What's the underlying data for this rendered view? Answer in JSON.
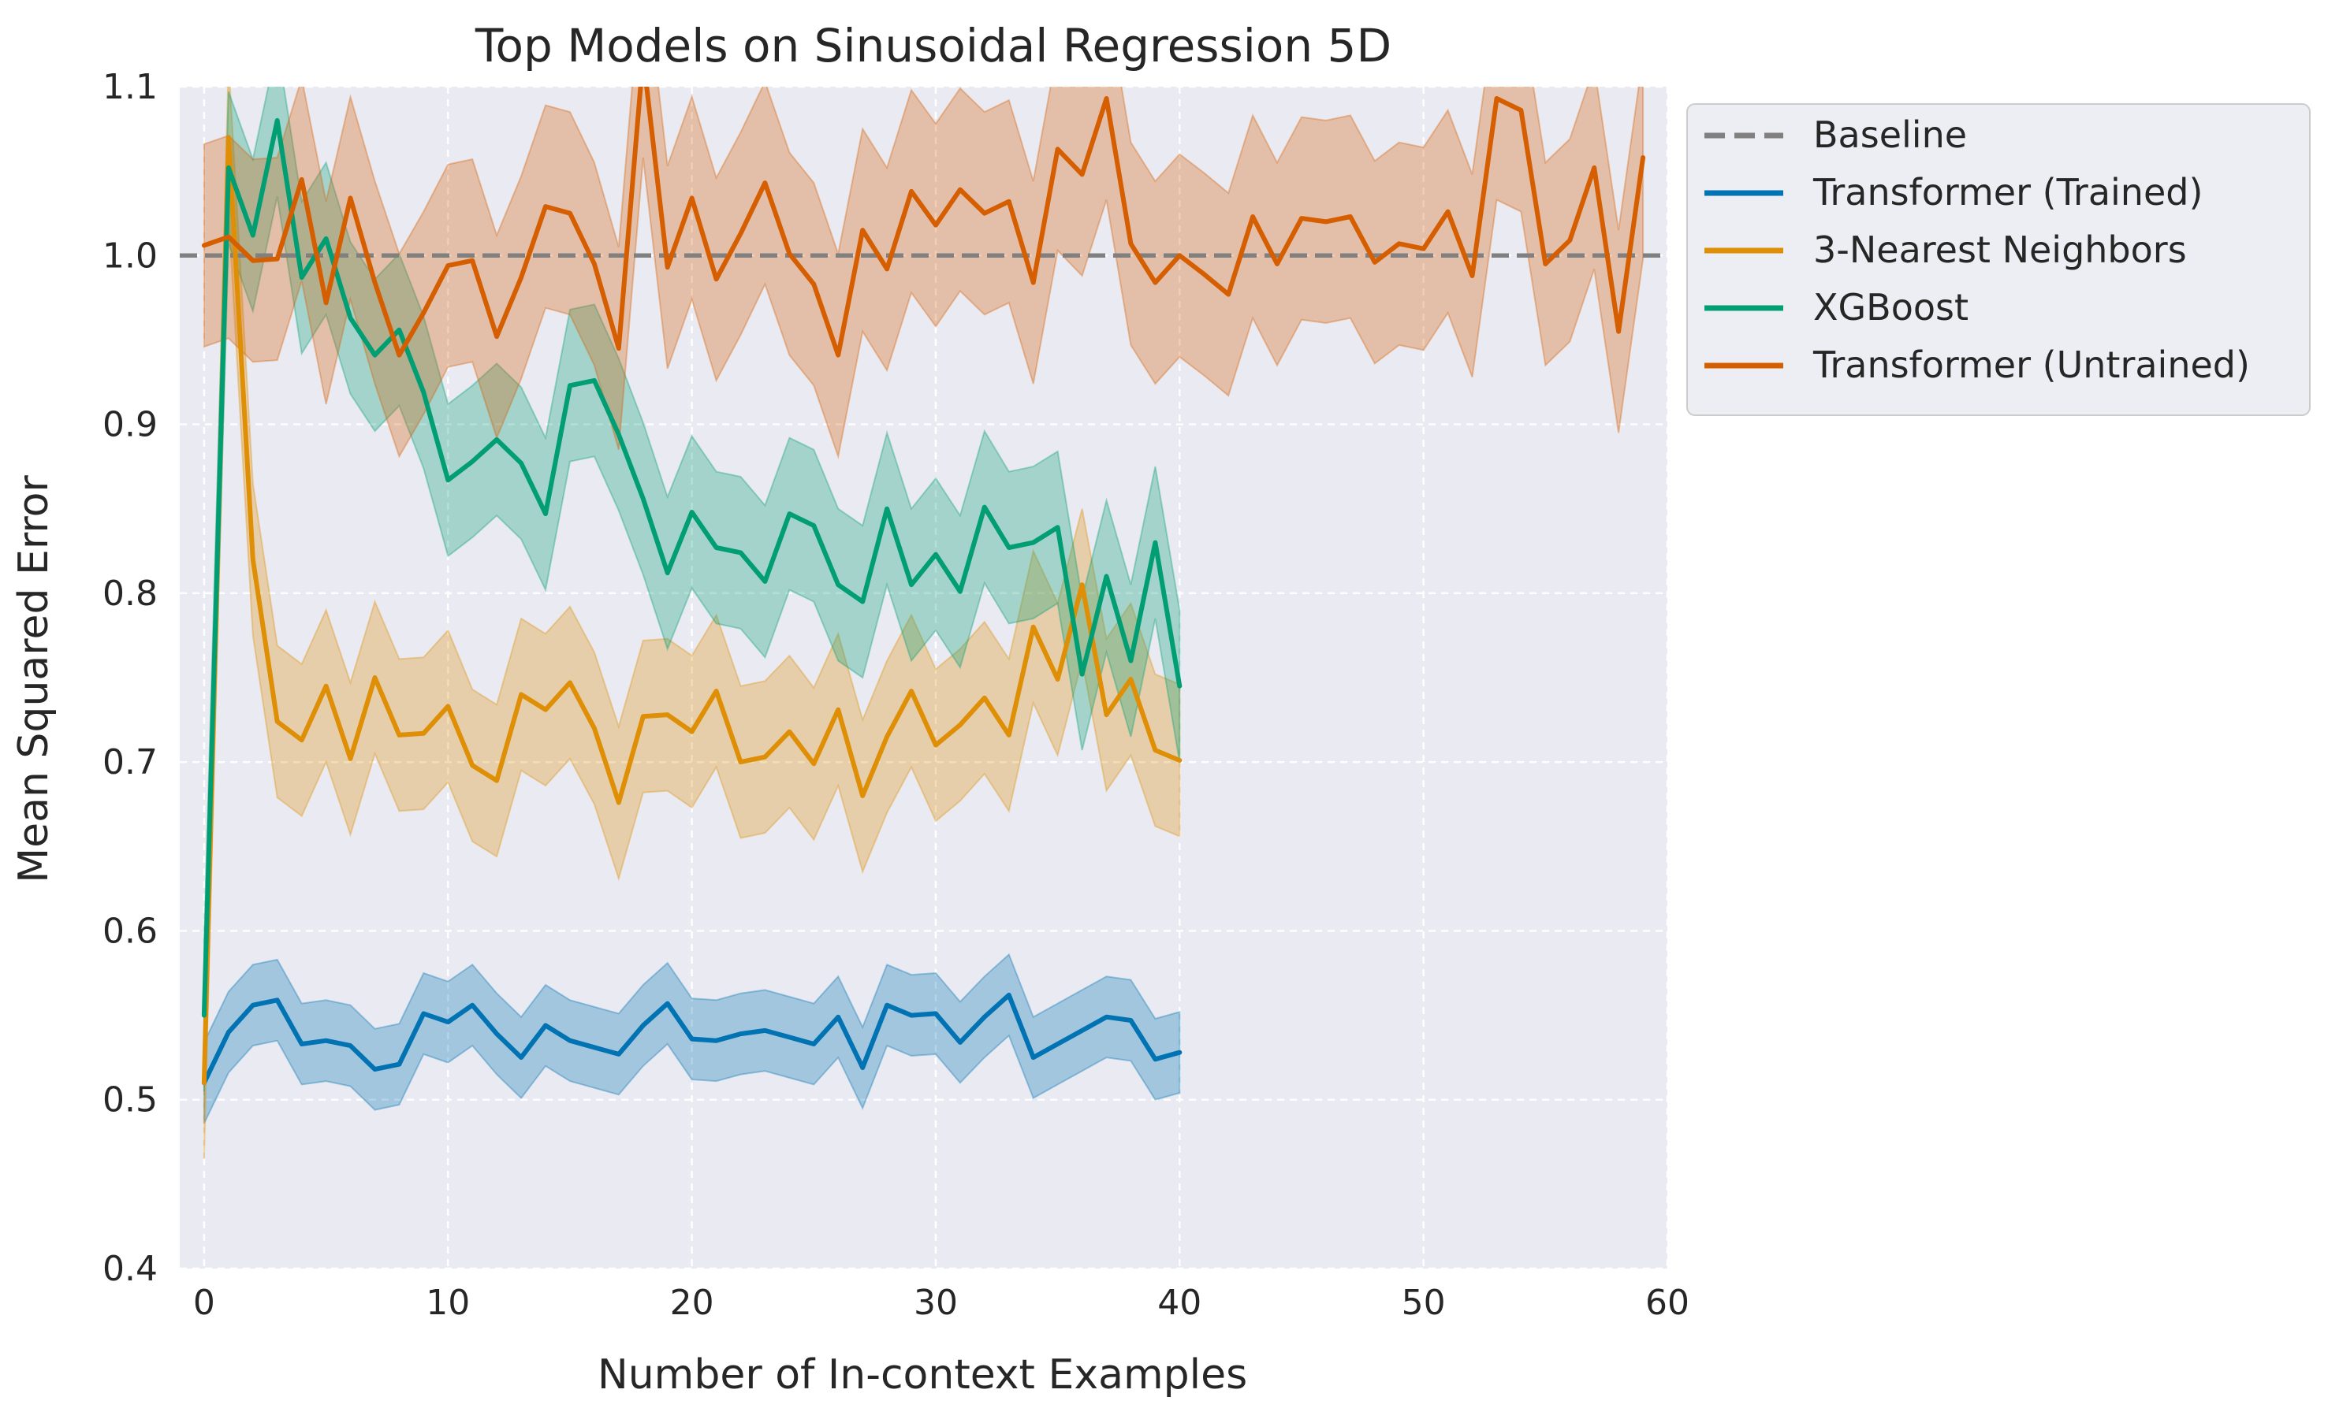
{
  "chart_data": {
    "type": "line",
    "title": "Top Models on Sinusoidal Regression 5D",
    "xlabel": "Number of In-context Examples",
    "ylabel": "Mean Squared Error",
    "xlim": [
      -1,
      60
    ],
    "ylim": [
      0.4,
      1.1
    ],
    "xticks": [
      0,
      10,
      20,
      30,
      40,
      50,
      60
    ],
    "yticks": [
      0.4,
      0.5,
      0.6,
      0.7,
      0.8,
      0.9,
      1.0,
      1.1
    ],
    "xtick_labels": [
      "0",
      "10",
      "20",
      "30",
      "40",
      "50",
      "60"
    ],
    "ytick_labels": [
      "0.4",
      "0.5",
      "0.6",
      "0.7",
      "0.8",
      "0.9",
      "1.0",
      "1.1"
    ],
    "grid": true,
    "background": "#eaeaf2",
    "legend_position": "outside-top-right",
    "baseline": {
      "name": "Baseline",
      "y": 1.0,
      "color": "#808080",
      "style": "dashed"
    },
    "series": [
      {
        "name": "Transformer (Trained)",
        "color": "#0173b2",
        "x_start": 0,
        "values": [
          0.51,
          0.54,
          0.556,
          0.559,
          0.533,
          0.535,
          0.532,
          0.518,
          0.521,
          0.551,
          0.546,
          0.556,
          0.539,
          0.525,
          0.544,
          0.535,
          0.531,
          0.527,
          0.544,
          0.557,
          0.536,
          0.535,
          0.539,
          0.541,
          0.537,
          0.533,
          0.549,
          0.519,
          0.556,
          0.55,
          0.551,
          0.534,
          0.549,
          0.562,
          0.525,
          0.533,
          0.541,
          0.549,
          0.547,
          0.524,
          0.528
        ],
        "band": 0.024
      },
      {
        "name": "3-Nearest Neighbors",
        "color": "#de8f05",
        "x_start": 0,
        "values": [
          0.51,
          1.07,
          0.82,
          0.724,
          0.713,
          0.745,
          0.702,
          0.75,
          0.716,
          0.717,
          0.733,
          0.698,
          0.689,
          0.74,
          0.731,
          0.747,
          0.72,
          0.676,
          0.727,
          0.728,
          0.718,
          0.742,
          0.7,
          0.703,
          0.718,
          0.699,
          0.731,
          0.68,
          0.715,
          0.742,
          0.71,
          0.722,
          0.738,
          0.716,
          0.78,
          0.749,
          0.805,
          0.728,
          0.749,
          0.707,
          0.701
        ],
        "band": 0.045
      },
      {
        "name": "XGBoost",
        "color": "#029e73",
        "x_start": 0,
        "values": [
          0.55,
          1.052,
          1.012,
          1.08,
          0.987,
          1.01,
          0.963,
          0.941,
          0.956,
          0.919,
          0.867,
          0.878,
          0.891,
          0.877,
          0.847,
          0.923,
          0.926,
          0.894,
          0.856,
          0.812,
          0.848,
          0.827,
          0.824,
          0.807,
          0.847,
          0.84,
          0.805,
          0.795,
          0.85,
          0.805,
          0.823,
          0.801,
          0.851,
          0.827,
          0.83,
          0.839,
          0.752,
          0.81,
          0.76,
          0.83,
          0.745
        ],
        "band": 0.045
      },
      {
        "name": "Transformer (Untrained)",
        "color": "#d55e00",
        "x_start": 0,
        "values": [
          1.006,
          1.011,
          0.997,
          0.998,
          1.045,
          0.972,
          1.034,
          0.984,
          0.941,
          0.966,
          0.994,
          0.997,
          0.952,
          0.987,
          1.029,
          1.025,
          0.995,
          0.945,
          1.118,
          0.993,
          1.034,
          0.986,
          1.013,
          1.043,
          1.001,
          0.983,
          0.941,
          1.015,
          0.992,
          1.038,
          1.018,
          1.039,
          1.025,
          1.032,
          0.984,
          1.063,
          1.048,
          1.093,
          1.007,
          0.984,
          1.0,
          0.989,
          0.977,
          1.023,
          0.995,
          1.022,
          1.02,
          1.023,
          0.996,
          1.007,
          1.004,
          1.026,
          0.988,
          1.093,
          1.086,
          0.995,
          1.009,
          1.052,
          0.955,
          1.058
        ],
        "band": 0.06
      }
    ]
  }
}
